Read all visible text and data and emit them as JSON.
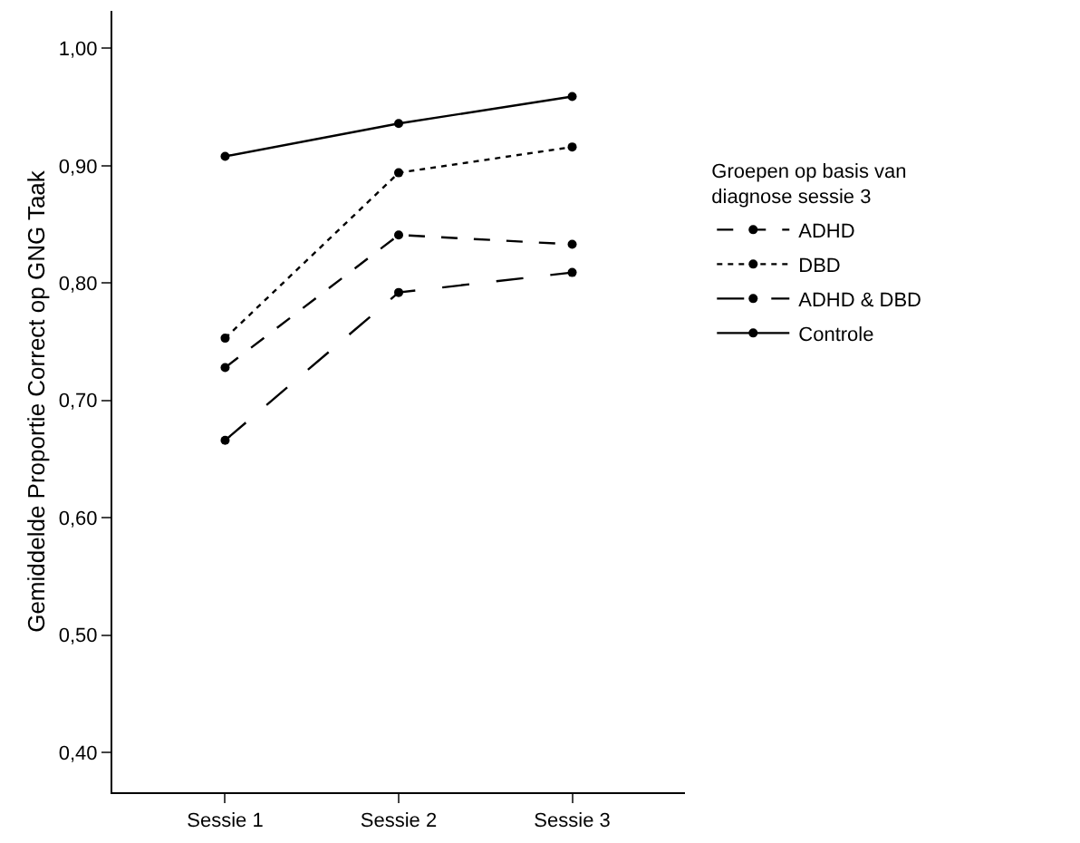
{
  "chart_data": {
    "type": "line",
    "ylabel": "Gemiddelde Proportie Correct op GNG Taak",
    "legend_title": "Groepen op basis van\ndiagnose sessie 3",
    "categories": [
      "Sessie 1",
      "Sessie 2",
      "Sessie 3"
    ],
    "series": [
      {
        "name": "ADHD",
        "color": "#000000",
        "line_style": "dashed",
        "values": [
          0.728,
          0.841,
          0.833
        ]
      },
      {
        "name": "DBD",
        "color": "#000000",
        "line_style": "dotted",
        "values": [
          0.753,
          0.894,
          0.916
        ]
      },
      {
        "name": "ADHD & DBD",
        "color": "#000000",
        "line_style": "longdash",
        "values": [
          0.666,
          0.792,
          0.809
        ]
      },
      {
        "name": "Controle",
        "color": "#000000",
        "line_style": "solid",
        "values": [
          0.908,
          0.936,
          0.959
        ]
      }
    ],
    "ylim": [
      0.366,
      1.032
    ],
    "yticks": [
      {
        "value": 0.4,
        "label": "0,40"
      },
      {
        "value": 0.5,
        "label": "0,50"
      },
      {
        "value": 0.6,
        "label": "0,60"
      },
      {
        "value": 0.7,
        "label": "0,70"
      },
      {
        "value": 0.8,
        "label": "0,80"
      },
      {
        "value": 0.9,
        "label": "0,90"
      },
      {
        "value": 1.0,
        "label": "1,00"
      }
    ],
    "marker": "circle",
    "legend": "right"
  }
}
